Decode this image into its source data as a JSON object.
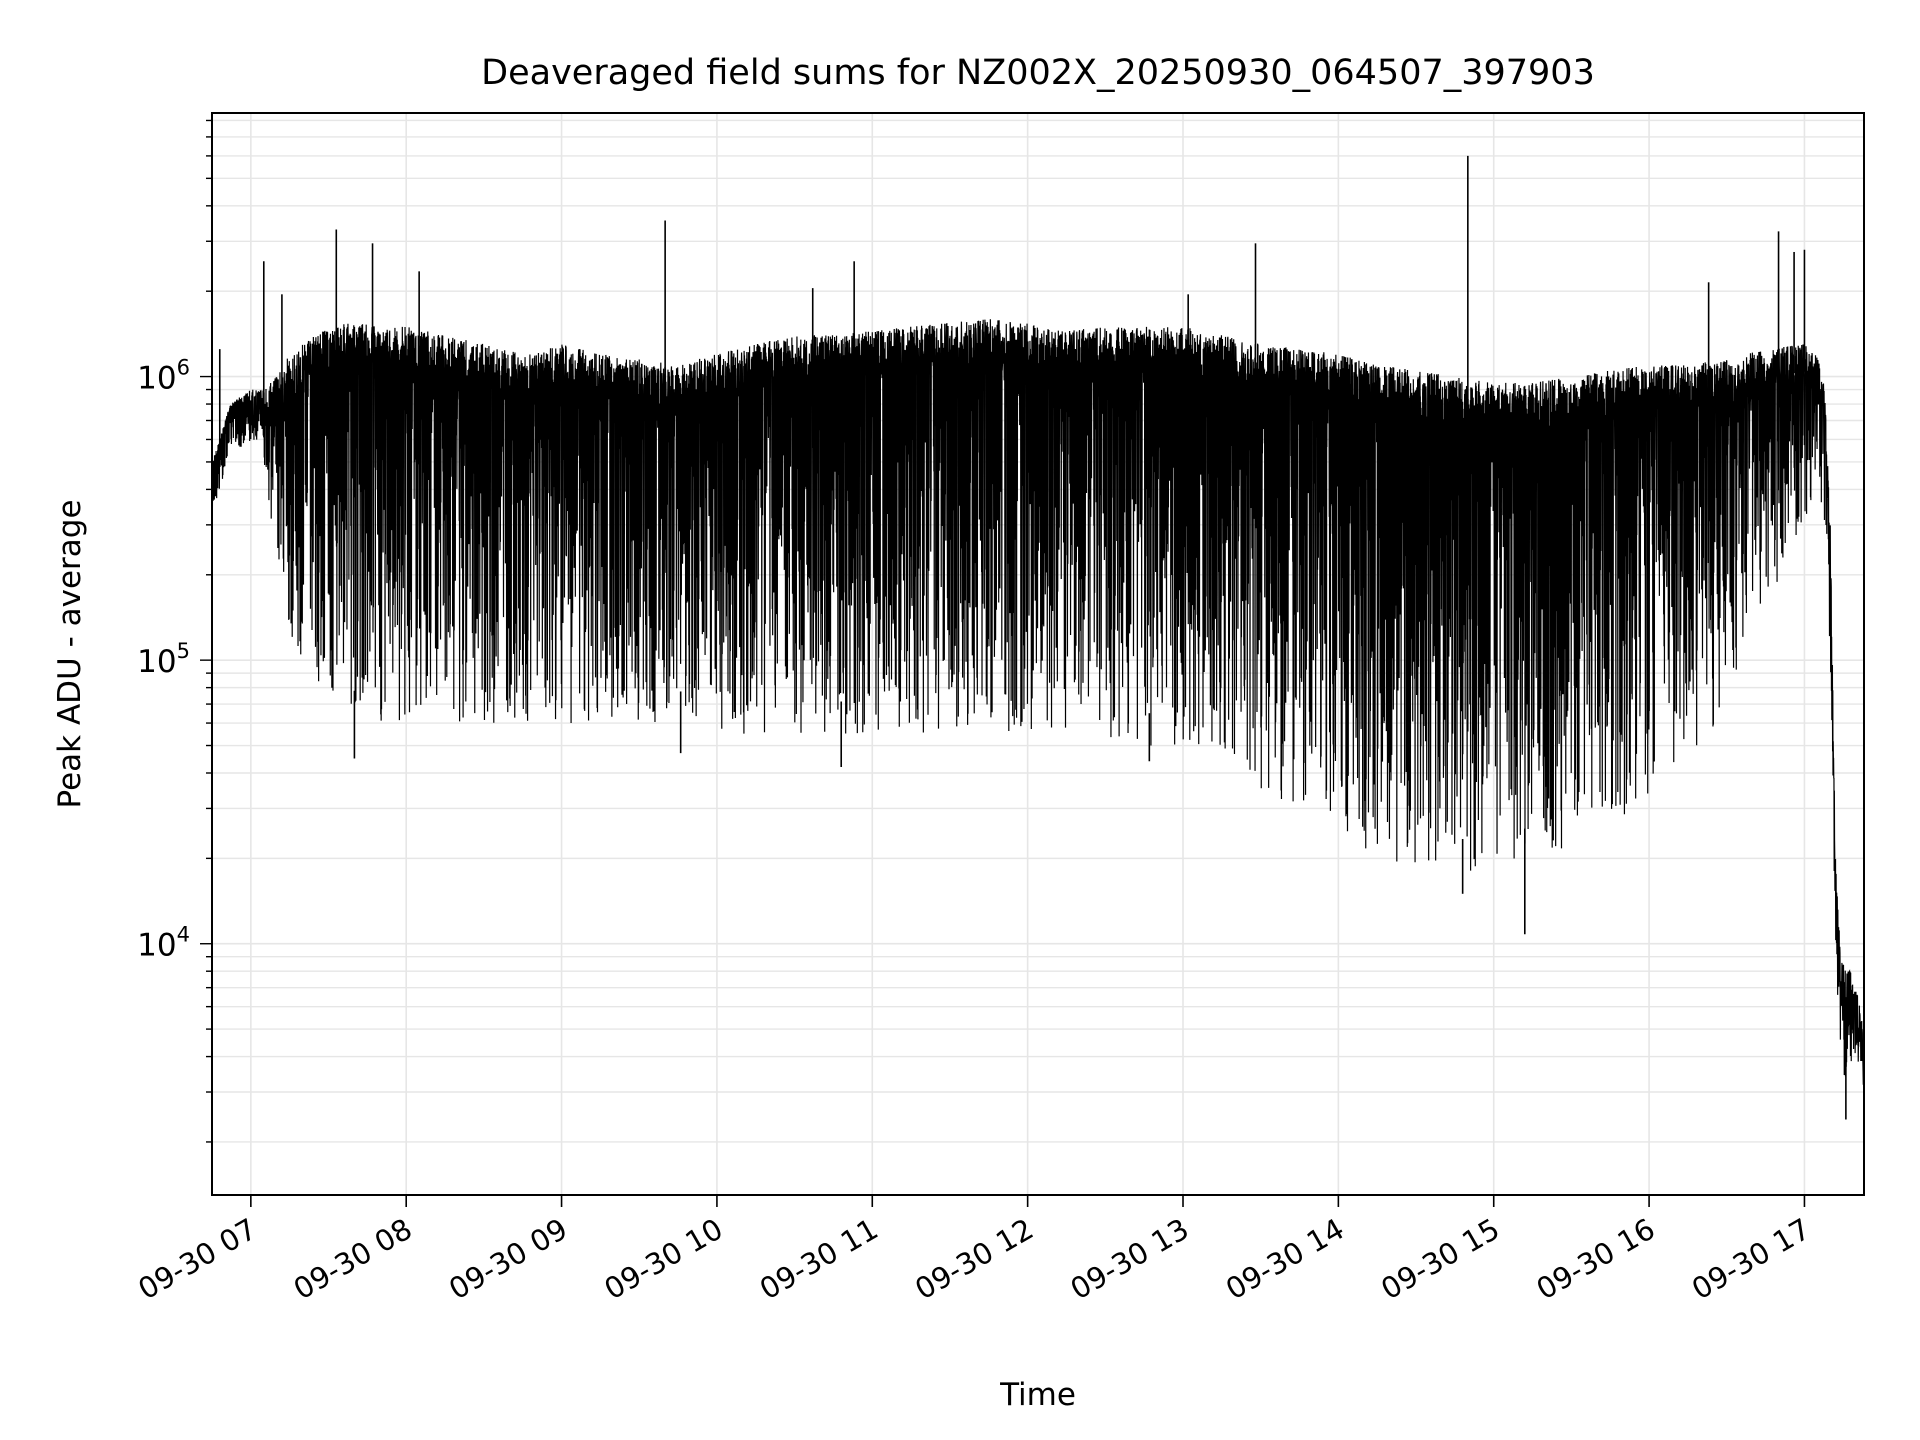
{
  "chart_data": {
    "type": "line",
    "title": "Deaveraged field sums for NZ002X_20250930_064507_397903",
    "xlabel": "Time",
    "ylabel": "Peak ADU - average",
    "y_scale": "log",
    "y_tick_labels": [
      {
        "base": "10",
        "exp": "4"
      },
      {
        "base": "10",
        "exp": "5"
      },
      {
        "base": "10",
        "exp": "6"
      }
    ],
    "x_tick_labels": [
      "09-30 07",
      "09-30 08",
      "09-30 09",
      "09-30 10",
      "09-30 11",
      "09-30 12",
      "09-30 13",
      "09-30 14",
      "09-30 15",
      "09-30 16",
      "09-30 17"
    ],
    "xlim": [
      "2025-09-30 06:45",
      "2025-09-30 17:23"
    ],
    "ylim": [
      1300,
      8500000
    ],
    "grid": true,
    "line_color": "#000000",
    "grid_color": "#e6e6e6",
    "envelope": {
      "time": [
        "06:45",
        "06:48",
        "06:52",
        "06:56",
        "07:00",
        "07:05",
        "07:10",
        "07:15",
        "07:20",
        "07:30",
        "07:40",
        "07:50",
        "08:00",
        "08:15",
        "08:30",
        "08:45",
        "09:00",
        "09:15",
        "09:30",
        "09:45",
        "10:00",
        "10:15",
        "10:30",
        "10:45",
        "11:00",
        "11:15",
        "11:30",
        "11:45",
        "12:00",
        "12:15",
        "12:30",
        "12:45",
        "13:00",
        "13:15",
        "13:30",
        "13:45",
        "14:00",
        "14:15",
        "14:30",
        "14:45",
        "15:00",
        "15:15",
        "15:30",
        "15:45",
        "16:00",
        "16:15",
        "16:30",
        "16:45",
        "17:00",
        "17:05",
        "17:08",
        "17:10",
        "17:12",
        "17:14",
        "17:16",
        "17:18",
        "17:20",
        "17:23"
      ],
      "upper": [
        500000,
        600000,
        800000,
        850000,
        900000,
        900000,
        1000000,
        1200000,
        1300000,
        1500000,
        1550000,
        1500000,
        1500000,
        1400000,
        1300000,
        1200000,
        1300000,
        1200000,
        1150000,
        1100000,
        1200000,
        1300000,
        1400000,
        1400000,
        1450000,
        1500000,
        1550000,
        1600000,
        1550000,
        1450000,
        1500000,
        1500000,
        1500000,
        1400000,
        1300000,
        1250000,
        1200000,
        1100000,
        1050000,
        1000000,
        950000,
        950000,
        1000000,
        1050000,
        1100000,
        1100000,
        1150000,
        1250000,
        1300000,
        1200000,
        900000,
        300000,
        20000,
        9000,
        8000,
        8000,
        7000,
        5000
      ],
      "lower": [
        450000,
        550000,
        750000,
        800000,
        700000,
        500000,
        200000,
        120000,
        90000,
        70000,
        60000,
        60000,
        60000,
        60000,
        60000,
        60000,
        60000,
        60000,
        60000,
        60000,
        55000,
        55000,
        55000,
        55000,
        55000,
        55000,
        55000,
        55000,
        55000,
        55000,
        50000,
        50000,
        50000,
        45000,
        35000,
        30000,
        25000,
        20000,
        18000,
        18000,
        18000,
        20000,
        22000,
        25000,
        30000,
        40000,
        70000,
        150000,
        300000,
        400000,
        300000,
        100000,
        8000,
        4000,
        3000,
        3500,
        4000,
        3000
      ]
    },
    "spikes": [
      {
        "time": "06:48",
        "value": 1250000
      },
      {
        "time": "07:05",
        "value": 2550000
      },
      {
        "time": "07:12",
        "value": 1950000
      },
      {
        "time": "07:33",
        "value": 3300000
      },
      {
        "time": "07:47",
        "value": 2950000
      },
      {
        "time": "08:05",
        "value": 2350000
      },
      {
        "time": "09:40",
        "value": 3550000
      },
      {
        "time": "10:37",
        "value": 2050000
      },
      {
        "time": "10:53",
        "value": 2550000
      },
      {
        "time": "13:02",
        "value": 1950000
      },
      {
        "time": "13:28",
        "value": 2950000
      },
      {
        "time": "14:50",
        "value": 6000000
      },
      {
        "time": "16:23",
        "value": 2150000
      },
      {
        "time": "16:50",
        "value": 3250000
      },
      {
        "time": "16:56",
        "value": 2750000
      },
      {
        "time": "17:00",
        "value": 2800000
      }
    ],
    "dips": [
      {
        "time": "07:40",
        "value": 45000
      },
      {
        "time": "09:46",
        "value": 47000
      },
      {
        "time": "10:48",
        "value": 42000
      },
      {
        "time": "12:47",
        "value": 44000
      },
      {
        "time": "14:48",
        "value": 15000
      },
      {
        "time": "15:12",
        "value": 10800
      },
      {
        "time": "17:16",
        "value": 2400
      }
    ]
  }
}
